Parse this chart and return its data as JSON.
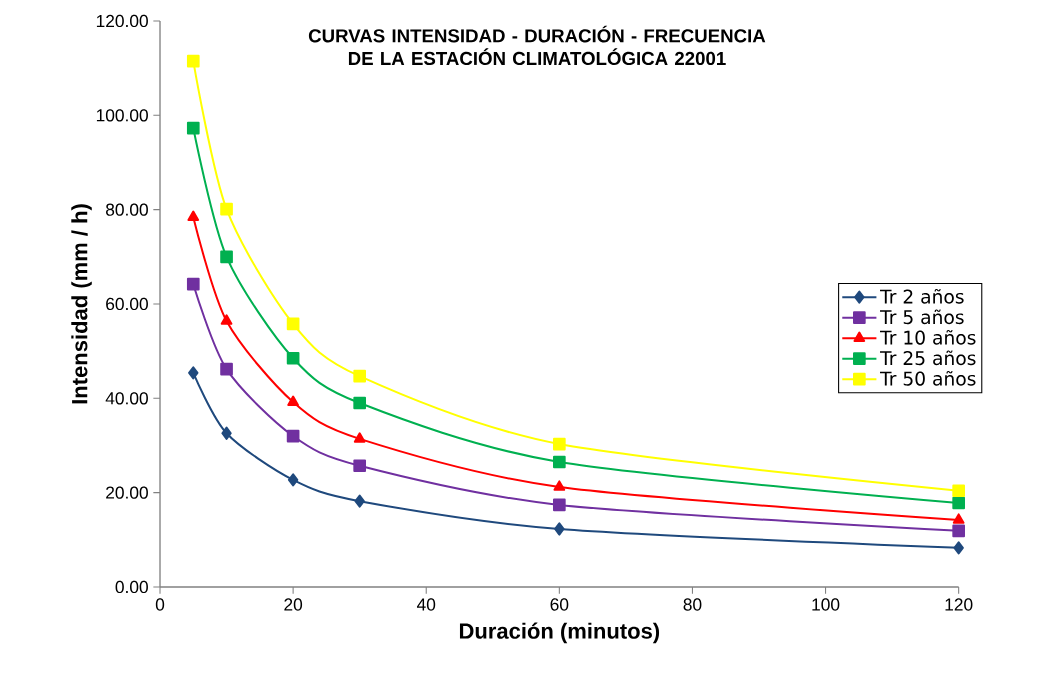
{
  "chart_data": {
    "type": "line",
    "title": "CURVAS INTENSIDAD - DURACIÓN - FRECUENCIA DE LA ESTACIÓN CLIMATOLÓGICA 22001",
    "xlabel": "Duración (minutos)",
    "ylabel": "Intensidad  (mm / h)",
    "x": [
      5,
      10,
      20,
      30,
      60,
      120
    ],
    "series": [
      {
        "name": "Tr 2 años",
        "color": "#1f497d",
        "marker": "diamond",
        "values": [
          45.4,
          32.6,
          22.7,
          18.2,
          12.3,
          8.3
        ]
      },
      {
        "name": "Tr 5 años",
        "color": "#7030a0",
        "marker": "square",
        "values": [
          64.2,
          46.2,
          32.0,
          25.7,
          17.4,
          11.9
        ]
      },
      {
        "name": "Tr 10 años",
        "color": "#ff0000",
        "marker": "triangle",
        "values": [
          78.4,
          56.4,
          39.2,
          31.4,
          21.2,
          14.2
        ]
      },
      {
        "name": "Tr 25 años",
        "color": "#00b050",
        "marker": "square",
        "values": [
          97.3,
          70.0,
          48.5,
          39.0,
          26.5,
          17.8
        ]
      },
      {
        "name": "Tr 50 años",
        "color": "#ffff00",
        "marker": "square",
        "values": [
          111.5,
          80.1,
          55.8,
          44.7,
          30.3,
          20.4
        ]
      }
    ],
    "xlim": [
      0,
      120
    ],
    "xticks": [
      0,
      20,
      40,
      60,
      80,
      100,
      120
    ],
    "ylim": [
      0,
      120
    ],
    "yticks": [
      {
        "value": 0,
        "label": "0.00"
      },
      {
        "value": 20,
        "label": "20.00"
      },
      {
        "value": 40,
        "label": "40.00"
      },
      {
        "value": 60,
        "label": "60.00"
      },
      {
        "value": 80,
        "label": "80.00"
      },
      {
        "value": 100,
        "label": "100.00"
      },
      {
        "value": 120,
        "label": "120.00"
      }
    ],
    "grid": false,
    "legend": "right",
    "line_style": "solid"
  }
}
